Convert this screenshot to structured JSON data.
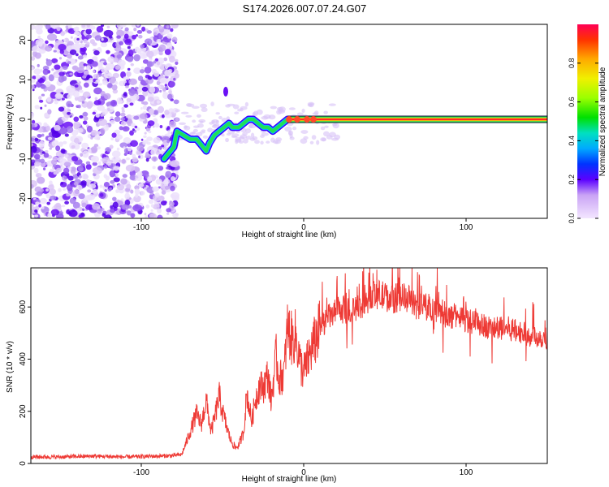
{
  "title": "S174.2026.007.07.24.G07",
  "colors": {
    "snr_line": "#ee3a35",
    "axis": "#000000",
    "track_edge": "#2a00ff"
  },
  "chart_data": [
    {
      "type": "heatmap",
      "xlabel": "Height of straight line (km)",
      "ylabel": "Frequency (Hz)",
      "xlim": [
        -168,
        150
      ],
      "ylim": [
        -25,
        24
      ],
      "xticks": [
        -100,
        0,
        100
      ],
      "yticks": [
        -20,
        -10,
        0,
        10,
        20
      ],
      "tick_labels_x": [
        "-100",
        "0",
        "100"
      ],
      "tick_labels_y": [
        "-20",
        "-10",
        "0",
        "10",
        "20"
      ],
      "noise_region_end_x": -78,
      "track": {
        "x": [
          -86,
          -84,
          -80,
          -78,
          -74,
          -70,
          -66,
          -62,
          -60,
          -58,
          -55,
          -52,
          -49,
          -46,
          -44,
          -40,
          -37,
          -34,
          -31,
          -28,
          -25,
          -22,
          -19,
          -16,
          -13,
          -10,
          -7,
          -4,
          -1,
          2,
          5,
          10,
          20,
          40,
          60,
          80,
          100,
          120,
          150
        ],
        "y": [
          -10,
          -9,
          -7,
          -3,
          -4,
          -5,
          -5,
          -7,
          -8,
          -6,
          -4,
          -3,
          -2,
          -1,
          -2,
          -2,
          -1,
          0,
          0,
          -1,
          -2,
          -2,
          -3,
          -2,
          -1,
          0,
          0,
          0,
          0,
          0,
          0,
          0,
          0,
          0,
          0,
          0,
          0,
          0,
          0
        ]
      },
      "colorbar": {
        "label": "Normalized spectral amplitude",
        "range": [
          0,
          1
        ],
        "ticks": [
          0.0,
          0.2,
          0.4,
          0.6,
          0.8
        ],
        "tick_labels": [
          "0.0",
          "0.2",
          "0.4",
          "0.6",
          "0.8"
        ]
      }
    },
    {
      "type": "line",
      "xlabel": "Height of straight line (km)",
      "ylabel": "SNR (10 * v/v)",
      "xlim": [
        -168,
        150
      ],
      "ylim": [
        0,
        750
      ],
      "xticks": [
        -100,
        0,
        100
      ],
      "yticks": [
        0,
        200,
        400,
        600
      ],
      "tick_labels_x": [
        "-100",
        "0",
        "100"
      ],
      "tick_labels_y": [
        "0",
        "200",
        "400",
        "600"
      ],
      "series": [
        {
          "name": "SNR",
          "x": [
            -168,
            -150,
            -130,
            -110,
            -90,
            -80,
            -75,
            -70,
            -66,
            -63,
            -60,
            -57,
            -55,
            -52,
            -50,
            -47,
            -45,
            -42,
            -40,
            -37,
            -35,
            -32,
            -30,
            -27,
            -25,
            -22,
            -20,
            -17,
            -15,
            -12,
            -10,
            -7,
            -5,
            -2,
            0,
            5,
            10,
            15,
            20,
            25,
            30,
            35,
            40,
            45,
            50,
            55,
            60,
            65,
            70,
            75,
            80,
            85,
            90,
            95,
            100,
            105,
            110,
            115,
            120,
            125,
            130,
            135,
            140,
            145,
            150
          ],
          "y": [
            25,
            25,
            28,
            25,
            28,
            30,
            35,
            120,
            190,
            150,
            240,
            120,
            170,
            260,
            200,
            130,
            90,
            60,
            70,
            120,
            270,
            160,
            240,
            300,
            290,
            340,
            240,
            410,
            320,
            350,
            520,
            470,
            490,
            380,
            350,
            440,
            520,
            560,
            580,
            590,
            580,
            600,
            630,
            650,
            640,
            630,
            640,
            630,
            600,
            600,
            600,
            580,
            560,
            570,
            550,
            540,
            530,
            520,
            515,
            520,
            510,
            500,
            490,
            485,
            480
          ]
        }
      ]
    }
  ]
}
